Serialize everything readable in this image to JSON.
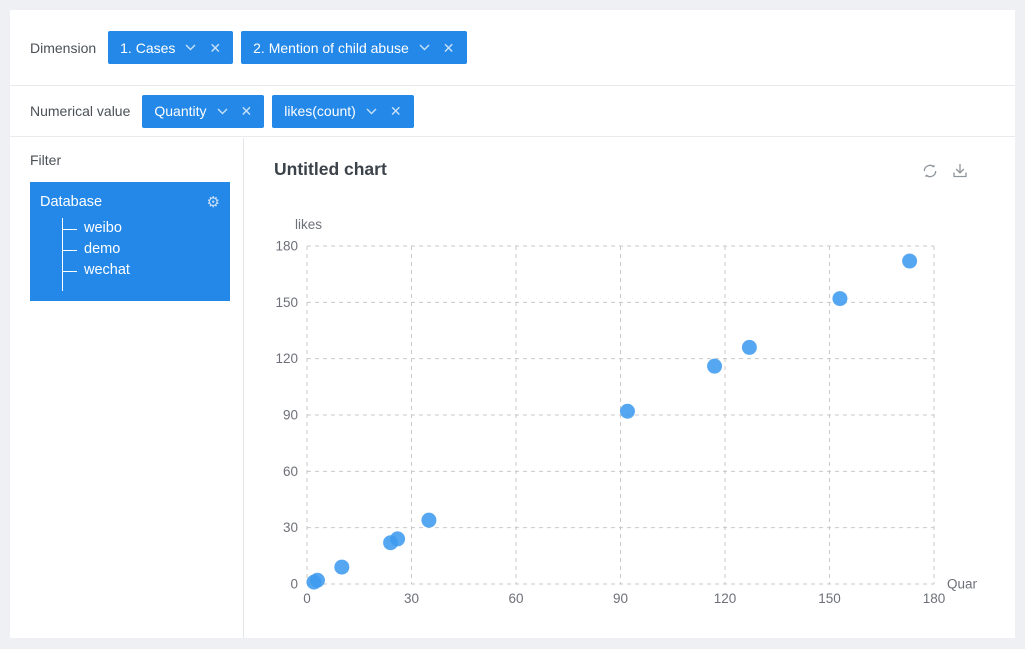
{
  "toolbar": {
    "dimension": {
      "label": "Dimension",
      "chips": [
        {
          "label": "1. Cases"
        },
        {
          "label": "2. Mention of child abuse"
        }
      ]
    },
    "numerical": {
      "label": "Numerical value",
      "chips": [
        {
          "label": "Quantity"
        },
        {
          "label": "likes(count)"
        }
      ]
    }
  },
  "sidebar": {
    "filter_label": "Filter",
    "database": {
      "title": "Database",
      "items": [
        {
          "label": "weibo"
        },
        {
          "label": "demo"
        },
        {
          "label": "wechat"
        }
      ]
    }
  },
  "main": {
    "title": "Untitled chart"
  },
  "icons": {
    "gear_glyph": "⚙",
    "close_glyph": "✕"
  },
  "colors": {
    "accent_blue": "#2388e8",
    "point_blue": "#3f9bef",
    "grid_gray": "#c9c9c9",
    "tick_text": "#6e7079",
    "title_text": "#3b4249"
  },
  "chart_data": {
    "type": "scatter",
    "title": "Untitled chart",
    "xlabel": "Quantity",
    "ylabel": "likes",
    "xlim": [
      0,
      180
    ],
    "ylim": [
      0,
      180
    ],
    "xticks": [
      0,
      30,
      60,
      90,
      120,
      150,
      180
    ],
    "yticks": [
      0,
      30,
      60,
      90,
      120,
      150,
      180
    ],
    "grid": "dashed",
    "legend": "none",
    "point_color": "#3f9bef",
    "point_radius": 7.5,
    "points": [
      [
        2,
        1
      ],
      [
        3,
        2
      ],
      [
        10,
        9
      ],
      [
        24,
        22
      ],
      [
        26,
        24
      ],
      [
        35,
        34
      ],
      [
        92,
        92
      ],
      [
        117,
        116
      ],
      [
        127,
        126
      ],
      [
        153,
        152
      ],
      [
        173,
        172
      ]
    ]
  }
}
